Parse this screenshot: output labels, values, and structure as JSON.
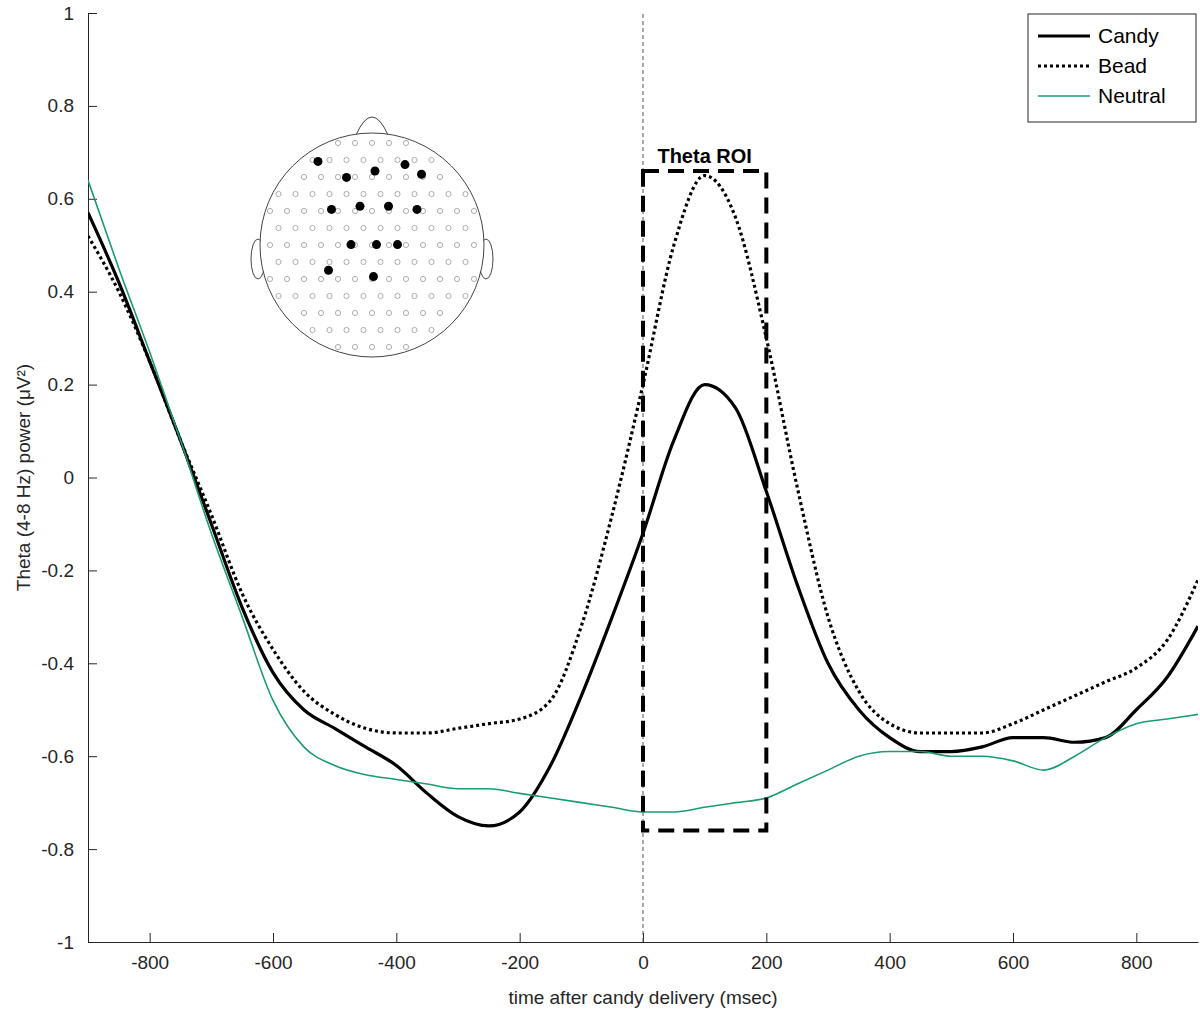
{
  "chart_data": {
    "type": "line",
    "x_label": "time after candy delivery (msec)",
    "y_label": "Theta (4-8 Hz) power (μV²)",
    "x": [
      -900,
      -850,
      -800,
      -750,
      -700,
      -650,
      -600,
      -550,
      -500,
      -450,
      -400,
      -350,
      -300,
      -250,
      -200,
      -150,
      -100,
      -50,
      0,
      50,
      100,
      150,
      200,
      250,
      300,
      350,
      400,
      450,
      500,
      550,
      600,
      650,
      700,
      750,
      800,
      850,
      900
    ],
    "series": [
      {
        "name": "Candy",
        "color": "#000000",
        "line_style": "solid",
        "values": [
          0.57,
          0.42,
          0.25,
          0.08,
          -0.1,
          -0.28,
          -0.42,
          -0.5,
          -0.54,
          -0.58,
          -0.62,
          -0.68,
          -0.73,
          -0.75,
          -0.72,
          -0.62,
          -0.47,
          -0.3,
          -0.12,
          0.08,
          0.2,
          0.15,
          -0.03,
          -0.23,
          -0.4,
          -0.5,
          -0.56,
          -0.59,
          -0.59,
          -0.58,
          -0.56,
          -0.56,
          -0.57,
          -0.56,
          -0.5,
          -0.43,
          -0.32
        ]
      },
      {
        "name": "Bead",
        "color": "#000000",
        "line_style": "dotted",
        "values": [
          0.52,
          0.4,
          0.25,
          0.08,
          -0.08,
          -0.25,
          -0.37,
          -0.46,
          -0.51,
          -0.54,
          -0.55,
          -0.55,
          -0.54,
          -0.53,
          -0.52,
          -0.48,
          -0.32,
          -0.08,
          0.2,
          0.5,
          0.65,
          0.56,
          0.3,
          -0.02,
          -0.3,
          -0.46,
          -0.53,
          -0.55,
          -0.55,
          -0.55,
          -0.53,
          -0.5,
          -0.47,
          -0.44,
          -0.41,
          -0.35,
          -0.22
        ]
      },
      {
        "name": "Neutral",
        "color": "#1a9b73",
        "line_style": "solid",
        "values": [
          0.64,
          0.45,
          0.27,
          0.08,
          -0.12,
          -0.3,
          -0.48,
          -0.58,
          -0.62,
          -0.64,
          -0.65,
          -0.66,
          -0.67,
          -0.67,
          -0.68,
          -0.69,
          -0.7,
          -0.71,
          -0.72,
          -0.72,
          -0.71,
          -0.7,
          -0.69,
          -0.66,
          -0.63,
          -0.6,
          -0.59,
          -0.59,
          -0.6,
          -0.6,
          -0.61,
          -0.63,
          -0.6,
          -0.56,
          -0.53,
          -0.52,
          -0.51
        ]
      }
    ],
    "xlim": [
      -900,
      900
    ],
    "xticks": [
      -800,
      -600,
      -400,
      -200,
      0,
      200,
      400,
      600,
      800
    ],
    "ylim": [
      -1,
      1
    ],
    "yticks": [
      -1,
      -0.8,
      -0.6,
      -0.4,
      -0.2,
      0,
      0.2,
      0.4,
      0.6,
      0.8,
      1
    ],
    "vline": 0,
    "annotations": [
      {
        "text": "Theta ROI",
        "x": [
          0,
          200
        ],
        "y": [
          -0.76,
          0.66
        ]
      }
    ],
    "legend": "upper right",
    "grid": false
  }
}
